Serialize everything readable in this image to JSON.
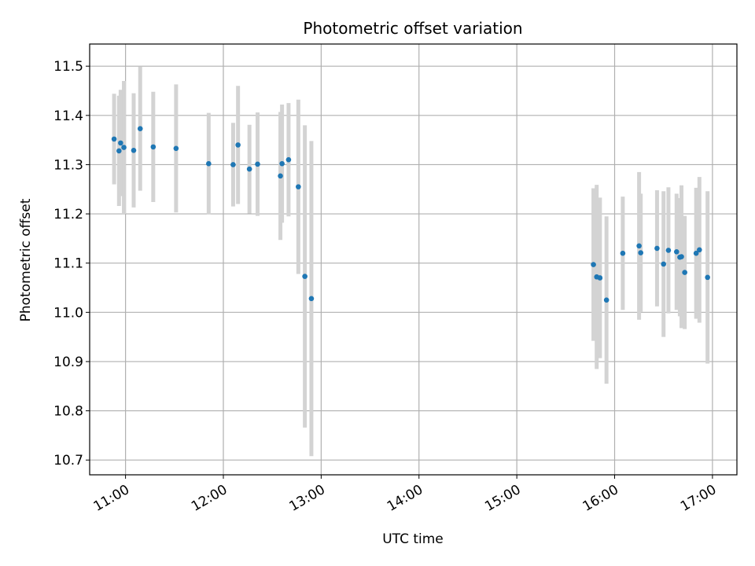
{
  "chart_data": {
    "type": "scatter",
    "title": "Photometric offset variation",
    "xlabel": "UTC time",
    "ylabel": "Photometric offset",
    "grid": true,
    "colors": {
      "points": "#1f77b4",
      "errorbars": "#d3d3d3",
      "grid": "#b0b0b0",
      "axes": "#000000"
    },
    "x_ticks": [
      "11:00",
      "12:00",
      "13:00",
      "14:00",
      "15:00",
      "16:00",
      "17:00"
    ],
    "x_tick_rotation_deg": 30,
    "y_ticks": [
      "10.7",
      "10.8",
      "10.9",
      "11.0",
      "11.1",
      "11.2",
      "11.3",
      "11.4",
      "11.5"
    ],
    "xlim": [
      "10:38",
      "17:15"
    ],
    "ylim": [
      10.67,
      11.545
    ],
    "series": [
      {
        "points": [
          {
            "x": "10:53",
            "y": 11.352,
            "err": 0.092
          },
          {
            "x": "10:56",
            "y": 11.328,
            "err": 0.112
          },
          {
            "x": "10:57",
            "y": 11.344,
            "err": 0.108
          },
          {
            "x": "10:59",
            "y": 11.335,
            "err": 0.135
          },
          {
            "x": "11:05",
            "y": 11.329,
            "err": 0.116
          },
          {
            "x": "11:09",
            "y": 11.373,
            "err": 0.126
          },
          {
            "x": "11:17",
            "y": 11.336,
            "err": 0.112
          },
          {
            "x": "11:31",
            "y": 11.333,
            "err": 0.13
          },
          {
            "x": "11:51",
            "y": 11.302,
            "err": 0.103
          },
          {
            "x": "12:06",
            "y": 11.3,
            "err": 0.085
          },
          {
            "x": "12:09",
            "y": 11.34,
            "err": 0.12
          },
          {
            "x": "12:16",
            "y": 11.291,
            "err": 0.09
          },
          {
            "x": "12:21",
            "y": 11.301,
            "err": 0.105
          },
          {
            "x": "12:35",
            "y": 11.277,
            "err": 0.13
          },
          {
            "x": "12:36",
            "y": 11.302,
            "err": 0.12
          },
          {
            "x": "12:40",
            "y": 11.31,
            "err": 0.115
          },
          {
            "x": "12:46",
            "y": 11.255,
            "err": 0.177
          },
          {
            "x": "12:50",
            "y": 11.073,
            "err": 0.307
          },
          {
            "x": "12:54",
            "y": 11.028,
            "err": 0.32
          },
          {
            "x": "15:47",
            "y": 11.097,
            "err": 0.155
          },
          {
            "x": "15:49",
            "y": 11.072,
            "err": 0.187
          },
          {
            "x": "15:51",
            "y": 11.07,
            "err": 0.163
          },
          {
            "x": "15:55",
            "y": 11.025,
            "err": 0.17
          },
          {
            "x": "16:05",
            "y": 11.12,
            "err": 0.115
          },
          {
            "x": "16:15",
            "y": 11.135,
            "err": 0.15
          },
          {
            "x": "16:16",
            "y": 11.121,
            "err": 0.12
          },
          {
            "x": "16:26",
            "y": 11.13,
            "err": 0.118
          },
          {
            "x": "16:30",
            "y": 11.098,
            "err": 0.148
          },
          {
            "x": "16:33",
            "y": 11.126,
            "err": 0.128
          },
          {
            "x": "16:38",
            "y": 11.123,
            "err": 0.118
          },
          {
            "x": "16:40",
            "y": 11.112,
            "err": 0.12
          },
          {
            "x": "16:41",
            "y": 11.113,
            "err": 0.145
          },
          {
            "x": "16:43",
            "y": 11.081,
            "err": 0.115
          },
          {
            "x": "16:50",
            "y": 11.12,
            "err": 0.133
          },
          {
            "x": "16:52",
            "y": 11.127,
            "err": 0.148
          },
          {
            "x": "16:57",
            "y": 11.071,
            "err": 0.175
          }
        ]
      }
    ]
  }
}
